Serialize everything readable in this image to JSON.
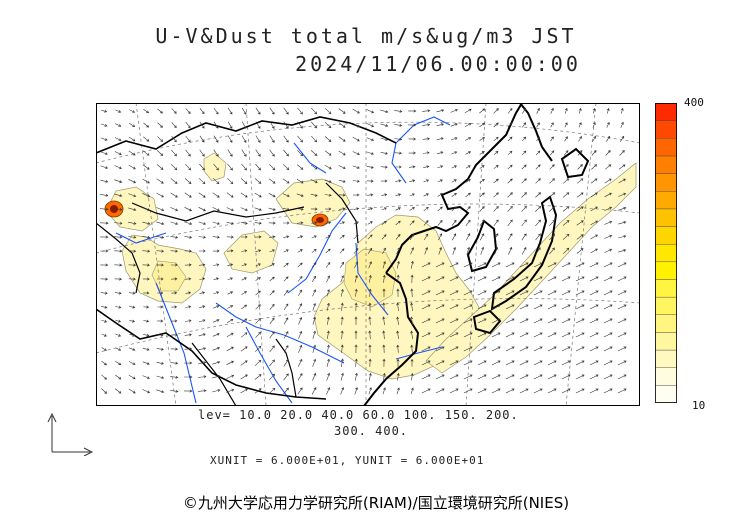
{
  "title": {
    "line1": "U-V&Dust total m/s&ug/m3 JST",
    "line2": "2024/11/06.00:00:00"
  },
  "legend": {
    "max_label": "400",
    "min_label": "10",
    "levels_line1": "lev= 10.0 20.0 40.0 60.0 100. 150. 200.",
    "levels_line2": "300. 400.",
    "units_line": "XUNIT = 6.000E+01, YUNIT = 6.000E+01",
    "colors": [
      "#fffef0",
      "#fffce0",
      "#fff9c0",
      "#fff6a0",
      "#fff580",
      "#fff560",
      "#fff540",
      "#fff200",
      "#ffe800",
      "#ffd500",
      "#ffc200",
      "#ffaa00",
      "#ff9500",
      "#ff7f00",
      "#ff6600",
      "#ff4800",
      "#ff2a00"
    ]
  },
  "copyright": "©九州大学応用力学研究所(RIAM)/国立環境研究所(NIES)",
  "map_colors": {
    "coast": "#000000",
    "rivers": "#1a55ff",
    "dust_light": "#fff6c0",
    "dust_mid": "#fff0a0",
    "dust_hot": "#ff6a00",
    "dust_core": "#8a1a00"
  }
}
